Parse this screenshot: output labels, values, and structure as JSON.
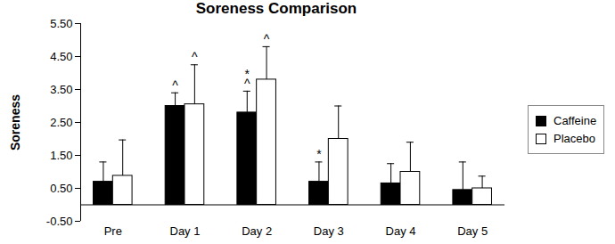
{
  "chart_data": {
    "type": "bar",
    "title": "Soreness Comparison",
    "y_label": "Soreness",
    "categories": [
      "Pre",
      "Day 1",
      "Day 2",
      "Day 3",
      "Day 4",
      "Day 5"
    ],
    "series": [
      {
        "name": "Caffeine",
        "color": "#000000",
        "values": [
          0.7,
          3.0,
          2.8,
          0.7,
          0.65,
          0.45
        ],
        "errors": [
          0.6,
          0.4,
          0.65,
          0.6,
          0.6,
          0.85
        ],
        "annotations": [
          null,
          [
            "^"
          ],
          [
            "*",
            "^"
          ],
          [
            "*"
          ],
          null,
          null
        ]
      },
      {
        "name": "Placebo",
        "color": "#ffffff",
        "values": [
          0.88,
          3.05,
          3.8,
          2.0,
          1.0,
          0.5
        ],
        "errors": [
          1.09,
          1.2,
          1.0,
          1.0,
          0.9,
          0.37
        ],
        "annotations": [
          null,
          [
            "^"
          ],
          [
            "^"
          ],
          null,
          null,
          null
        ]
      }
    ],
    "ylim": [
      -0.5,
      5.5
    ],
    "yticks": [
      {
        "value": -0.5,
        "label": "-0.50"
      },
      {
        "value": 0.5,
        "label": "0.50"
      },
      {
        "value": 1.5,
        "label": "1.50"
      },
      {
        "value": 2.5,
        "label": "2.50"
      },
      {
        "value": 3.5,
        "label": "3.50"
      },
      {
        "value": 4.5,
        "label": "4.50"
      },
      {
        "value": 5.5,
        "label": "5.50"
      }
    ],
    "legend": "right",
    "grid": false
  }
}
